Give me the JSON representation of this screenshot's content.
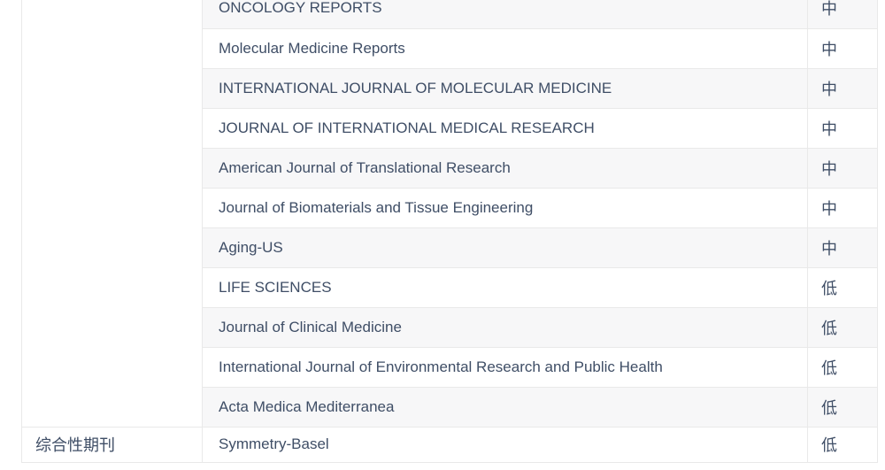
{
  "table": {
    "category_column": {
      "group1_label": "",
      "group2_label": "综合性期刊"
    },
    "level_legend": {
      "medium": "中",
      "low": "低"
    },
    "rows": [
      {
        "journal": "ONCOLOGY REPORTS",
        "level": "中"
      },
      {
        "journal": "Molecular Medicine Reports",
        "level": "中"
      },
      {
        "journal": "INTERNATIONAL JOURNAL OF MOLECULAR MEDICINE",
        "level": "中"
      },
      {
        "journal": "JOURNAL OF INTERNATIONAL MEDICAL RESEARCH",
        "level": "中"
      },
      {
        "journal": "American Journal of Translational Research",
        "level": "中"
      },
      {
        "journal": "Journal of Biomaterials and Tissue Engineering",
        "level": "中"
      },
      {
        "journal": "Aging-US",
        "level": "中"
      },
      {
        "journal": "LIFE SCIENCES",
        "level": "低"
      },
      {
        "journal": "Journal of Clinical Medicine",
        "level": "低"
      },
      {
        "journal": "International Journal of Environmental Research and Public Health",
        "level": "低"
      },
      {
        "journal": "Acta Medica Mediterranea",
        "level": "低"
      },
      {
        "journal": "Symmetry-Basel",
        "level": "低"
      }
    ],
    "colors": {
      "row_alt_background": "#f7f7f8",
      "row_background": "#ffffff",
      "border": "#e9e9e9",
      "text": "#3f4e66"
    }
  }
}
